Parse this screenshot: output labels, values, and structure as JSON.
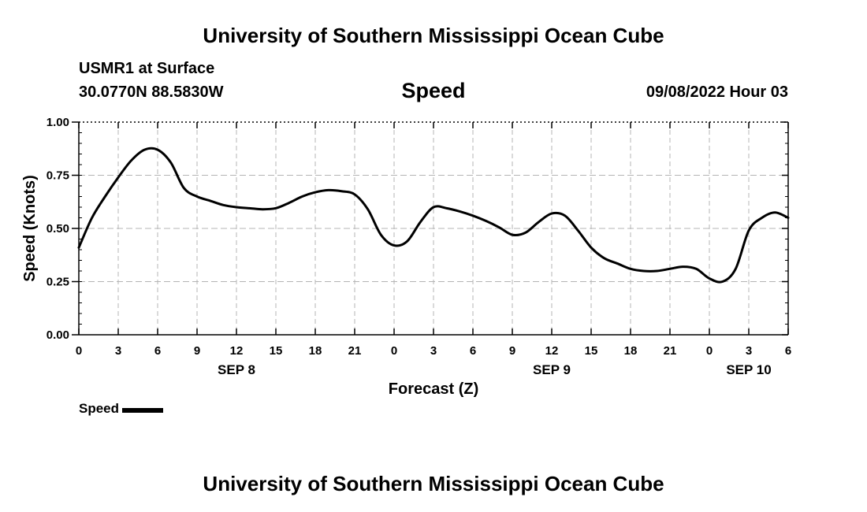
{
  "header": {
    "title": "University of Southern Mississippi Ocean Cube",
    "station": "USMR1 at Surface",
    "coords": "30.0770N  88.5830W",
    "subtitle": "Speed",
    "datetime": "09/08/2022 Hour 03"
  },
  "footer": {
    "title": "University of Southern Mississippi Ocean Cube"
  },
  "legend": {
    "label": "Speed",
    "color": "#000000"
  },
  "chart_data": {
    "type": "line",
    "title": "Speed",
    "xlabel": "Forecast (Z)",
    "ylabel": "Speed (Knots)",
    "xlim": [
      0,
      54
    ],
    "ylim": [
      0,
      1
    ],
    "grid": true,
    "x_ticks": [
      0,
      3,
      6,
      9,
      12,
      15,
      18,
      21,
      24,
      27,
      30,
      33,
      36,
      39,
      42,
      45,
      48,
      51,
      54
    ],
    "x_tick_labels": [
      "0",
      "3",
      "6",
      "9",
      "12",
      "15",
      "18",
      "21",
      "0",
      "3",
      "6",
      "9",
      "12",
      "15",
      "18",
      "21",
      "0",
      "3",
      "6"
    ],
    "y_ticks": [
      0,
      0.25,
      0.5,
      0.75,
      1.0
    ],
    "y_tick_labels": [
      "0.00",
      "0.25",
      "0.50",
      "0.75",
      "1.00"
    ],
    "date_labels": [
      {
        "x": 12,
        "label": "SEP 8"
      },
      {
        "x": 36,
        "label": "SEP 9"
      },
      {
        "x": 51,
        "label": "SEP 10"
      }
    ],
    "series": [
      {
        "name": "Speed",
        "color": "#000000",
        "x": [
          0,
          1,
          2,
          3,
          4,
          5,
          6,
          7,
          8,
          9,
          10,
          11,
          12,
          13,
          14,
          15,
          16,
          17,
          18,
          19,
          20,
          21,
          22,
          23,
          24,
          25,
          26,
          27,
          28,
          29,
          30,
          31,
          32,
          33,
          34,
          35,
          36,
          37,
          38,
          39,
          40,
          41,
          42,
          43,
          44,
          45,
          46,
          47,
          48,
          49,
          50,
          51,
          52,
          53,
          54
        ],
        "values": [
          0.41,
          0.55,
          0.65,
          0.74,
          0.82,
          0.87,
          0.87,
          0.81,
          0.69,
          0.65,
          0.63,
          0.61,
          0.6,
          0.595,
          0.59,
          0.595,
          0.62,
          0.65,
          0.67,
          0.68,
          0.675,
          0.66,
          0.59,
          0.47,
          0.42,
          0.44,
          0.53,
          0.6,
          0.595,
          0.58,
          0.56,
          0.535,
          0.505,
          0.47,
          0.48,
          0.53,
          0.57,
          0.56,
          0.49,
          0.41,
          0.36,
          0.335,
          0.31,
          0.3,
          0.3,
          0.31,
          0.32,
          0.31,
          0.265,
          0.25,
          0.31,
          0.49,
          0.55,
          0.575,
          0.55
        ]
      }
    ]
  }
}
